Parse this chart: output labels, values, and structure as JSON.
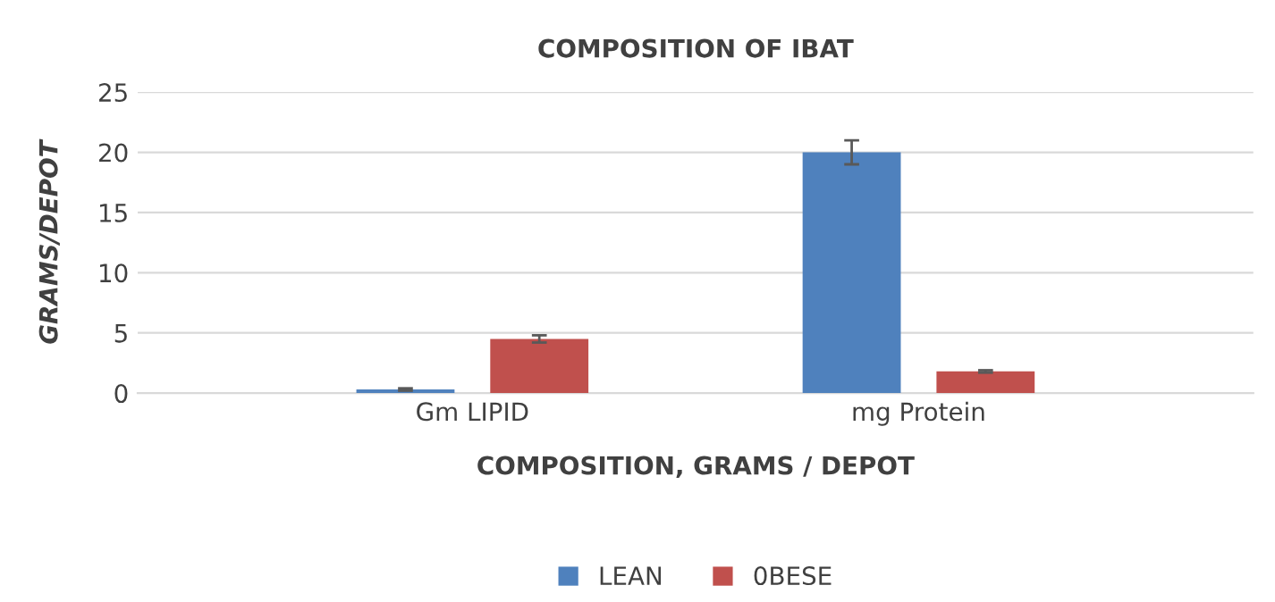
{
  "chart_data": {
    "type": "bar",
    "title": "COMPOSITION OF IBAT",
    "xlabel": "COMPOSITION, GRAMS / DEPOT",
    "ylabel": "GRAMS/DEPOT",
    "categories": [
      "Gm LIPID",
      "mg Protein"
    ],
    "series": [
      {
        "name": "LEAN",
        "color": "#4f81bd",
        "values": [
          0.3,
          20
        ],
        "errors": [
          0.1,
          1.0
        ]
      },
      {
        "name": "0BESE",
        "color": "#c0504d",
        "values": [
          4.5,
          1.8
        ],
        "errors": [
          0.3,
          0.1
        ]
      }
    ],
    "ylim": [
      0,
      25
    ],
    "yticks": [
      0,
      5,
      10,
      15,
      20,
      25
    ],
    "grid": "y",
    "legend": "bottom"
  }
}
